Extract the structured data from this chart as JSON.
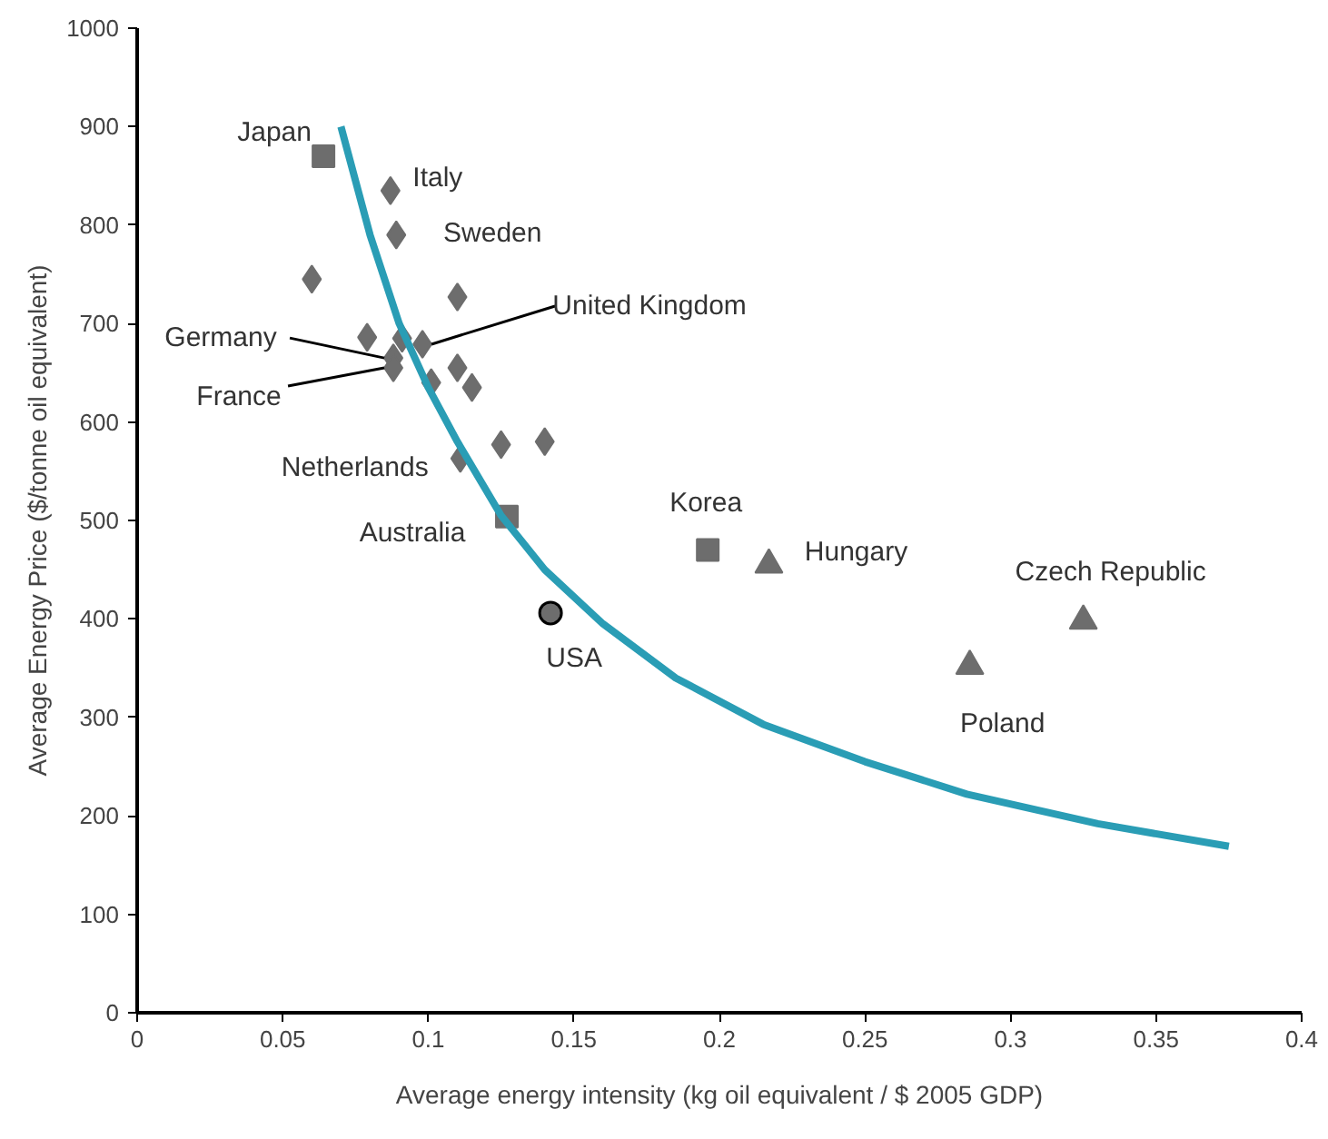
{
  "chart_data": {
    "type": "scatter",
    "xlabel": "Average energy intensity (kg oil equivalent / $ 2005 GDP)",
    "ylabel": "Average Energy Price ($/tonne oil equivalent)",
    "xlim": [
      0,
      0.4
    ],
    "xticks": [
      0,
      0.05,
      0.1,
      0.15,
      0.2,
      0.25,
      0.3,
      0.35,
      0.4
    ],
    "ylim": [
      0,
      1000
    ],
    "yticks": [
      0,
      100,
      200,
      300,
      400,
      500,
      600,
      700,
      800,
      900,
      1000
    ],
    "grid": false,
    "series": [
      {
        "marker": "diamond",
        "color": "#6d6d6d",
        "x": [
          0.087,
          0.089,
          0.06,
          0.11,
          0.079,
          0.091,
          0.098,
          0.088,
          0.088,
          0.11,
          0.101,
          0.115,
          0.125,
          0.14,
          0.111
        ],
        "values": [
          835,
          790,
          745,
          727,
          686,
          685,
          679,
          665,
          655,
          655,
          640,
          635,
          577,
          580,
          563
        ]
      },
      {
        "marker": "square",
        "color": "#6d6d6d",
        "x": [
          0.064,
          0.127,
          0.196
        ],
        "values": [
          870,
          504,
          470
        ]
      },
      {
        "marker": "triangle",
        "color": "#6d6d6d",
        "x": [
          0.217,
          0.286,
          0.325
        ],
        "values": [
          455,
          352,
          398
        ]
      },
      {
        "marker": "circle",
        "color": "#6d6d6d",
        "x": [
          0.142
        ],
        "values": [
          406
        ]
      },
      {
        "type": "line",
        "color": "#2a9db5",
        "x": [
          0.07,
          0.08,
          0.09,
          0.1,
          0.11,
          0.125,
          0.14,
          0.16,
          0.185,
          0.215,
          0.25,
          0.285,
          0.33,
          0.375
        ],
        "values": [
          900,
          790,
          700,
          635,
          580,
          505,
          450,
          395,
          340,
          293,
          255,
          222,
          192,
          169
        ]
      }
    ],
    "annotations": [
      {
        "text": "Japan",
        "x": 0.064,
        "y": 870
      },
      {
        "text": "Italy",
        "x": 0.087,
        "y": 835
      },
      {
        "text": "Sweden",
        "x": 0.089,
        "y": 790
      },
      {
        "text": "United Kingdom",
        "x": 0.098,
        "y": 679
      },
      {
        "text": "Germany",
        "x": 0.088,
        "y": 665
      },
      {
        "text": "France",
        "x": 0.088,
        "y": 655
      },
      {
        "text": "Netherlands",
        "x": 0.111,
        "y": 563
      },
      {
        "text": "Australia",
        "x": 0.127,
        "y": 504
      },
      {
        "text": "Korea",
        "x": 0.196,
        "y": 470
      },
      {
        "text": "Hungary",
        "x": 0.217,
        "y": 455
      },
      {
        "text": "Czech Republic",
        "x": 0.325,
        "y": 398
      },
      {
        "text": "USA",
        "x": 0.142,
        "y": 406
      },
      {
        "text": "Poland",
        "x": 0.286,
        "y": 352
      }
    ]
  }
}
